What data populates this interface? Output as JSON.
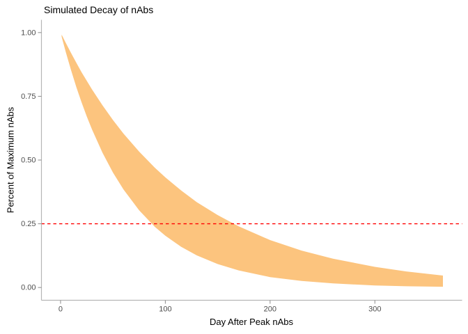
{
  "window": {
    "background": "#FFFFFF"
  },
  "chart_data": {
    "type": "area",
    "title": "Simulated Decay of nAbs",
    "xlabel": "Day After Peak nAbs",
    "ylabel": "Percent of Maximum nAbs",
    "xlim": [
      0,
      365
    ],
    "ylim": [
      0,
      1
    ],
    "axis_expansion": 0.05,
    "grid": "off",
    "legend": "none",
    "x_ticks": {
      "values": [
        0,
        100,
        200,
        300
      ],
      "labels": [
        "0",
        "100",
        "200",
        "300"
      ]
    },
    "y_ticks": {
      "values": [
        0,
        0.25,
        0.5,
        0.75,
        1
      ],
      "labels": [
        "0.00",
        "0.25",
        "0.50",
        "0.75",
        "1.00"
      ]
    },
    "threshold_line": {
      "y": 0.25,
      "color": "#FF0000",
      "style": "dashed"
    },
    "ribbon": {
      "name": "simulated-decay-envelope",
      "fill": "#FCC47E",
      "x": [
        1,
        5,
        10,
        15,
        20,
        25,
        30,
        40,
        50,
        60,
        75,
        90,
        100,
        115,
        130,
        150,
        170,
        200,
        230,
        260,
        300,
        330,
        365
      ],
      "upper": [
        0.992,
        0.959,
        0.92,
        0.882,
        0.845,
        0.811,
        0.777,
        0.715,
        0.657,
        0.604,
        0.533,
        0.47,
        0.432,
        0.381,
        0.335,
        0.284,
        0.24,
        0.186,
        0.145,
        0.113,
        0.081,
        0.063,
        0.047
      ],
      "lower": [
        0.984,
        0.923,
        0.853,
        0.787,
        0.727,
        0.671,
        0.62,
        0.529,
        0.451,
        0.385,
        0.303,
        0.238,
        0.203,
        0.16,
        0.126,
        0.092,
        0.067,
        0.041,
        0.026,
        0.016,
        0.008,
        0.005,
        0.003
      ]
    },
    "colors": {
      "axis_line": "#B5B5B5",
      "tick_mark": "#8C8C8C",
      "tick_label": "#4D4D4D",
      "title_text": "#000000"
    }
  }
}
